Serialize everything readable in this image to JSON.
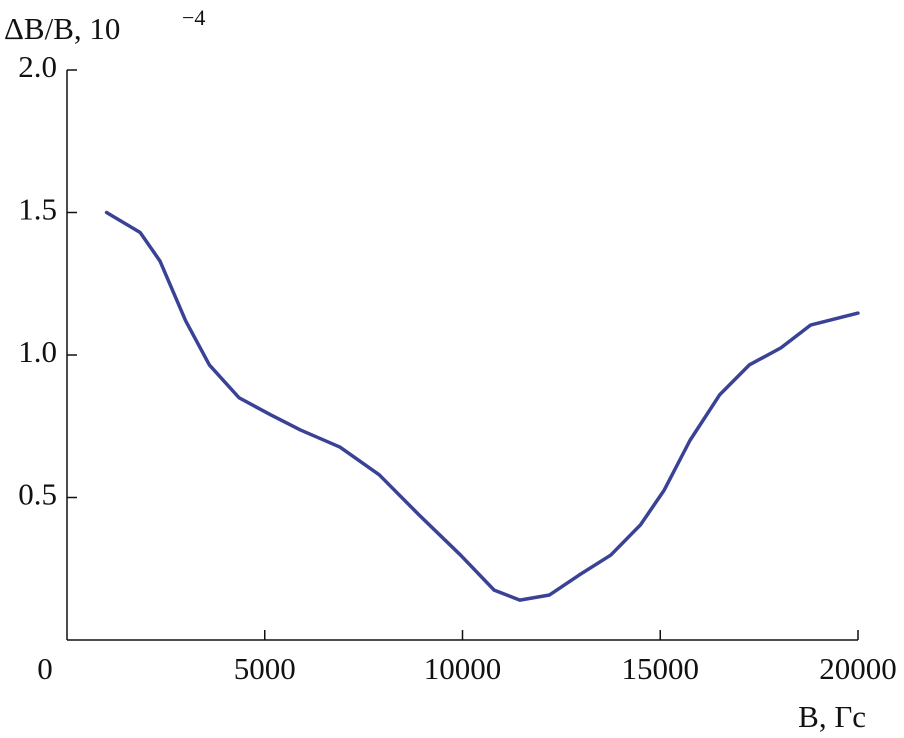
{
  "chart_data": {
    "type": "line",
    "y_label": "ΔB/B, 10",
    "y_label_exponent": "−4",
    "x_label": "B, Гс",
    "x": [
      1000,
      1850,
      2350,
      3000,
      3600,
      4350,
      5150,
      5900,
      6900,
      7900,
      8900,
      9950,
      10800,
      11450,
      12200,
      12950,
      13750,
      14500,
      15100,
      15750,
      16500,
      17250,
      18050,
      18800,
      20000
    ],
    "series": [
      {
        "color": "#3a4296",
        "values": [
          1.5,
          1.43,
          1.33,
          1.12,
          0.965,
          0.85,
          0.79,
          0.737,
          0.677,
          0.579,
          0.439,
          0.298,
          0.175,
          0.14,
          0.158,
          0.228,
          0.298,
          0.404,
          0.526,
          0.7,
          0.86,
          0.965,
          1.025,
          1.105,
          1.147
        ]
      }
    ],
    "xlim": [
      0,
      20000
    ],
    "ylim": [
      0,
      2.0
    ],
    "xticks": [
      0,
      5000,
      10000,
      15000,
      20000
    ],
    "yticks": [
      0.5,
      {
        "value": 1.0,
        "label": "1.0"
      },
      1.5,
      {
        "value": 2.0,
        "label": "2.0"
      }
    ]
  }
}
